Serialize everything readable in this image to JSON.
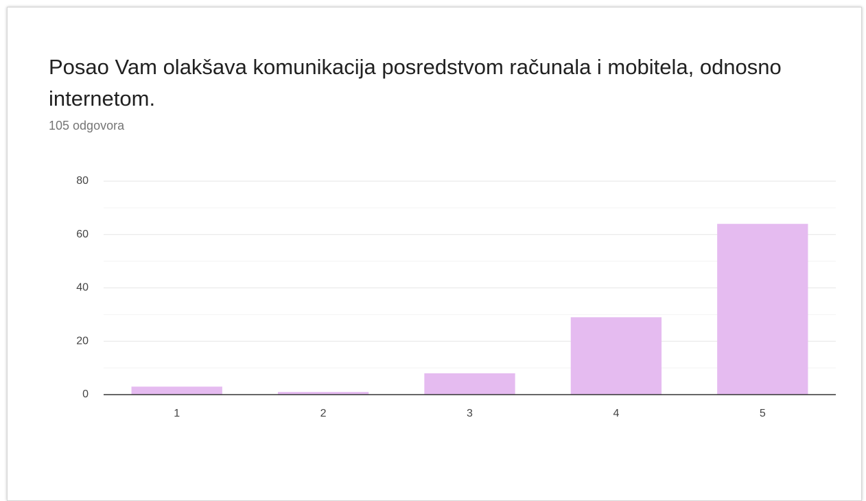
{
  "chart_data": {
    "type": "bar",
    "title": "Posao Vam olakšava komunikacija posredstvom računala i mobitela, odnosno internetom.",
    "subtitle": "105 odgovora",
    "categories": [
      "1",
      "2",
      "3",
      "4",
      "5"
    ],
    "values": [
      3,
      1,
      8,
      29,
      64
    ],
    "color": "#e5bbf0",
    "ylim": [
      0,
      80
    ],
    "yticks": [
      0,
      20,
      40,
      60,
      80
    ],
    "grid": true
  }
}
